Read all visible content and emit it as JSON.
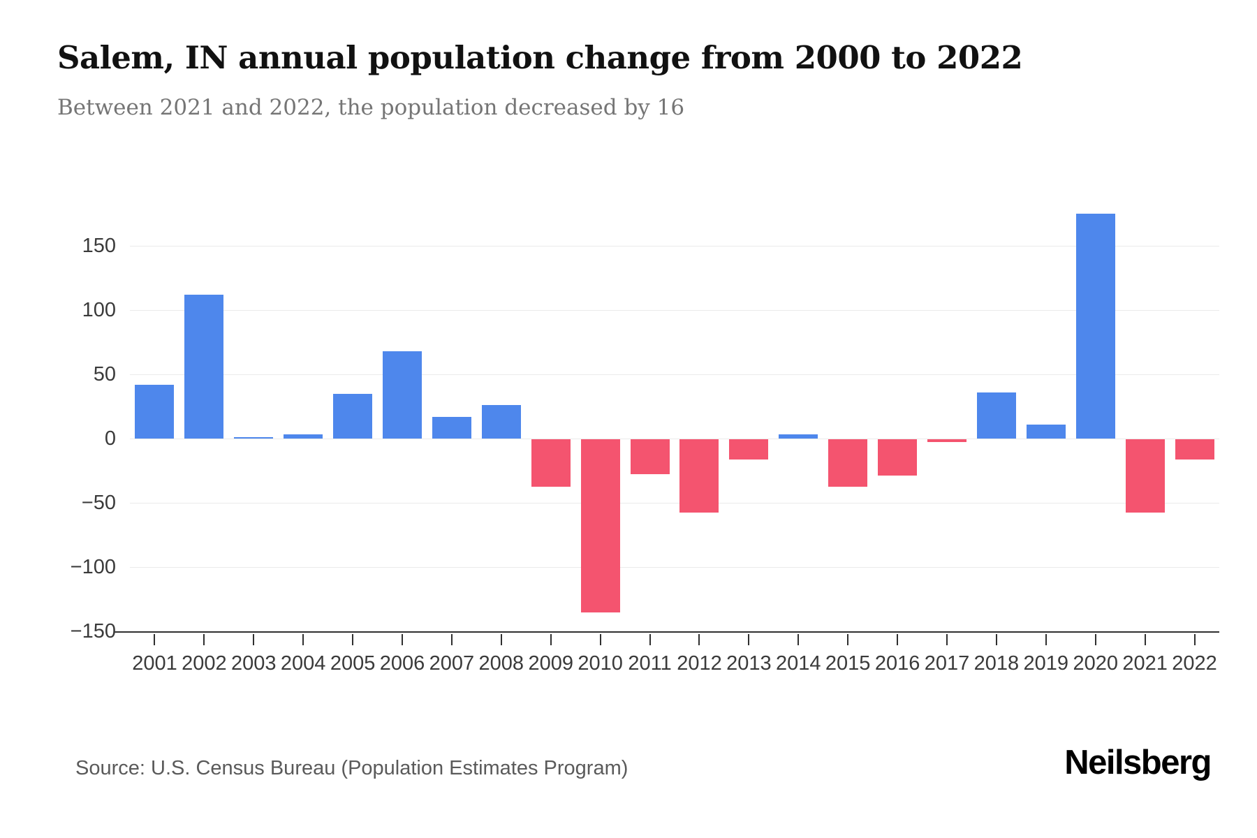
{
  "header": {
    "title": "Salem, IN annual population change from 2000 to 2022",
    "subtitle": "Between 2021 and 2022, the population decreased by 16"
  },
  "footer": {
    "source": "Source: U.S. Census Bureau (Population Estimates Program)",
    "brand": "Neilsberg"
  },
  "chart_data": {
    "type": "bar",
    "title": "Salem, IN annual population change from 2000 to 2022",
    "xlabel": "",
    "ylabel": "",
    "categories": [
      "2001",
      "2002",
      "2003",
      "2004",
      "2005",
      "2006",
      "2007",
      "2008",
      "2009",
      "2010",
      "2011",
      "2012",
      "2013",
      "2014",
      "2015",
      "2016",
      "2017",
      "2018",
      "2019",
      "2020",
      "2021",
      "2022"
    ],
    "values": [
      42,
      112,
      1,
      3,
      35,
      68,
      17,
      26,
      -37,
      -135,
      -27,
      -57,
      -16,
      3,
      -37,
      -28,
      -2,
      36,
      11,
      175,
      -57,
      -16
    ],
    "yticks": [
      150,
      100,
      50,
      0,
      -50,
      -100,
      -150
    ],
    "ylim": [
      -150,
      180
    ],
    "grid": true,
    "legend": "none",
    "colors": {
      "positive": "#4e87ec",
      "negative": "#f4546f"
    }
  }
}
